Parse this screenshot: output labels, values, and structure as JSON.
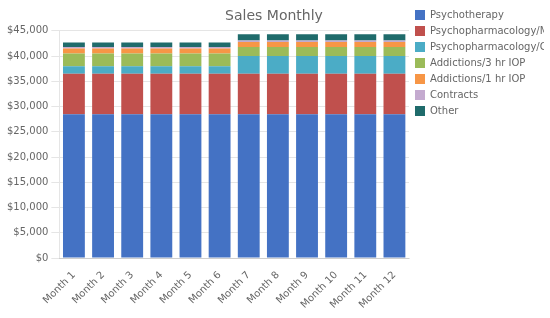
{
  "chart_data": {
    "type": "bar",
    "title": "Sales Monthly",
    "categories": [
      "Month 1",
      "Month 2",
      "Month 3",
      "Month 4",
      "Month 5",
      "Month 6",
      "Month 7",
      "Month 8",
      "Month 9",
      "Month 10",
      "Month 11",
      "Month 12"
    ],
    "series": [
      {
        "name": "Psychotherapy",
        "color": "#4472C4",
        "values": [
          28500,
          28500,
          28500,
          28500,
          28500,
          28500,
          28500,
          28500,
          28500,
          28500,
          28500,
          28500
        ]
      },
      {
        "name": "Psychopharmacology/MD",
        "color": "#C0504D",
        "values": [
          8000,
          8000,
          8000,
          8000,
          8000,
          8000,
          8000,
          8000,
          8000,
          8000,
          8000,
          8000
        ]
      },
      {
        "name": "Psychopharmacology/CNS",
        "color": "#4BACC6",
        "values": [
          1500,
          1500,
          1500,
          1500,
          1500,
          1500,
          3500,
          3500,
          3500,
          3500,
          3500,
          3500
        ]
      },
      {
        "name": "Addictions/3 hr IOP",
        "color": "#9BBB59",
        "values": [
          2500,
          2500,
          2500,
          2500,
          2500,
          2500,
          1800,
          1800,
          1800,
          1800,
          1800,
          1800
        ]
      },
      {
        "name": "Addictions/1 hr IOP",
        "color": "#F79646",
        "values": [
          1000,
          1000,
          1000,
          1000,
          1000,
          1000,
          1000,
          1000,
          1000,
          1000,
          1000,
          1000
        ]
      },
      {
        "name": "Contracts",
        "color": "#C4AACF",
        "values": [
          300,
          300,
          300,
          300,
          300,
          300,
          300,
          300,
          300,
          300,
          300,
          300
        ]
      },
      {
        "name": "Other",
        "color": "#1F6B6B",
        "values": [
          900,
          900,
          900,
          900,
          900,
          900,
          1200,
          1200,
          1200,
          1200,
          1200,
          1200
        ]
      }
    ],
    "ylim": [
      0,
      45000
    ],
    "yticks": [
      {
        "value": 0,
        "label": "$0"
      },
      {
        "value": 5000,
        "label": "$5,000"
      },
      {
        "value": 10000,
        "label": "$10,000"
      },
      {
        "value": 15000,
        "label": "$15,000"
      },
      {
        "value": 20000,
        "label": "$20,000"
      },
      {
        "value": 25000,
        "label": "$25,000"
      },
      {
        "value": 30000,
        "label": "$30,000"
      },
      {
        "value": 35000,
        "label": "$35,000"
      },
      {
        "value": 40000,
        "label": "$40,000"
      },
      {
        "value": 45000,
        "label": "$45,000"
      }
    ],
    "stacked": true,
    "grid": true,
    "legend": "right"
  }
}
